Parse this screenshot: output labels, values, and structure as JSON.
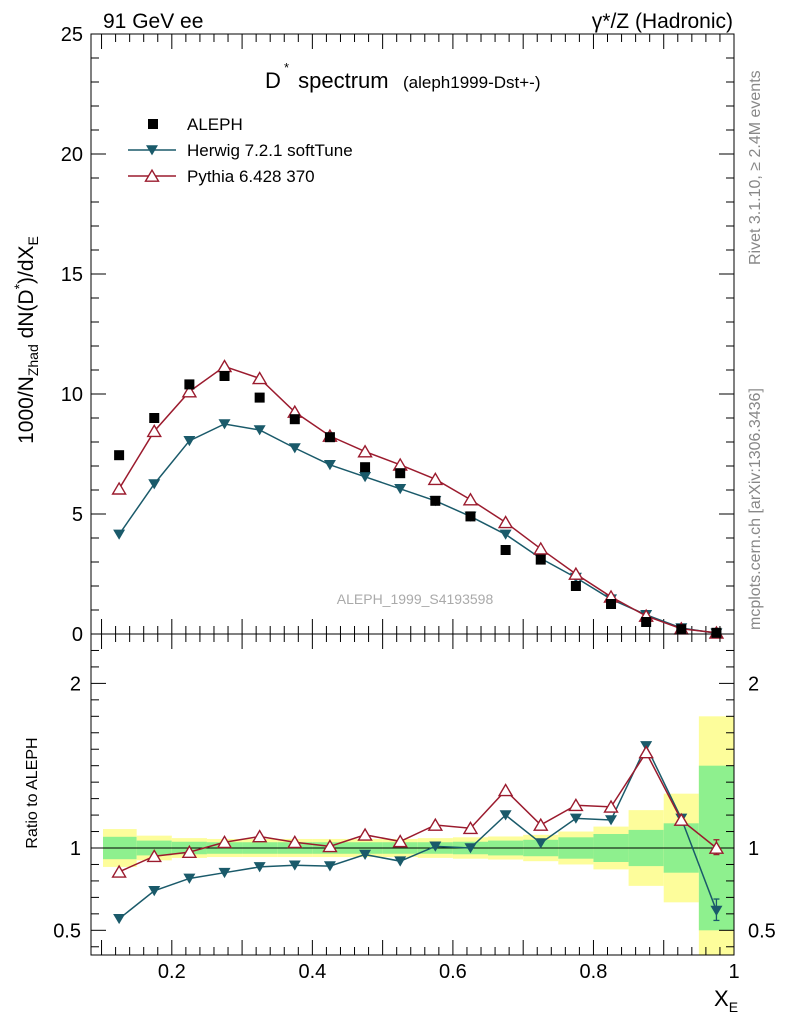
{
  "header": {
    "left": "91 GeV ee",
    "right": "γ*/Z (Hadronic)"
  },
  "side_labels": {
    "rivet": "Rivet 3.1.10, ≥ 2.4M events",
    "mcplots": "mcplots.cern.ch [arXiv:1306.3436]"
  },
  "colors": {
    "aleph": "#000000",
    "herwig": "#1a5a6a",
    "pythia": "#9b1b2e",
    "band_green": "#8ef08e",
    "band_yellow": "#fdfd9b"
  },
  "chart_data": [
    {
      "type": "line",
      "title_main": "D",
      "title_sup": "*",
      "title_rest": " spectrum",
      "title_small": "(aleph1999-Dst+-)",
      "watermark": "ALEPH_1999_S4193598",
      "ylabel": "1000/N_Zhad dN(D*)/dX_E",
      "xlim": [
        0.085,
        1.0
      ],
      "ylim": [
        0,
        25
      ],
      "yticks": [
        0,
        5,
        10,
        15,
        20,
        25
      ],
      "ytick_labels": [
        "0",
        "5",
        "10",
        "15",
        "20",
        "25"
      ],
      "x": [
        0.125,
        0.175,
        0.225,
        0.275,
        0.325,
        0.375,
        0.425,
        0.475,
        0.525,
        0.575,
        0.625,
        0.675,
        0.725,
        0.775,
        0.825,
        0.875,
        0.925,
        0.975
      ],
      "legend": [
        "ALEPH",
        "Herwig 7.2.1 softTune",
        "Pythia 6.428 370"
      ],
      "series": [
        {
          "name": "ALEPH",
          "marker": "square",
          "values": [
            7.45,
            9.0,
            10.4,
            10.75,
            9.85,
            8.95,
            8.2,
            6.95,
            6.7,
            5.55,
            4.9,
            3.5,
            3.1,
            2.0,
            1.25,
            0.5,
            0.2,
            0.05
          ]
        },
        {
          "name": "Herwig 7.2.1 softTune",
          "marker": "triangle-down",
          "values": [
            4.15,
            6.25,
            8.05,
            8.75,
            8.5,
            7.75,
            7.05,
            6.55,
            6.05,
            5.55,
            4.9,
            4.15,
            3.15,
            2.35,
            1.45,
            0.8,
            0.25,
            0.03
          ]
        },
        {
          "name": "Pythia 6.428 370",
          "marker": "triangle-up-open",
          "values": [
            6.05,
            8.45,
            10.1,
            11.15,
            10.65,
            9.25,
            8.25,
            7.6,
            7.05,
            6.45,
            5.6,
            4.65,
            3.55,
            2.5,
            1.55,
            0.75,
            0.22,
            0.05
          ]
        }
      ]
    },
    {
      "type": "line",
      "ylabel": "Ratio to ALEPH",
      "xlabel": "X_E",
      "xlim": [
        0.085,
        1.0
      ],
      "ylim": [
        0.35,
        2.3
      ],
      "xticks": [
        0.2,
        0.4,
        0.6,
        0.8,
        1.0
      ],
      "xtick_labels": [
        "0.2",
        "0.4",
        "0.6",
        "0.8",
        "1"
      ],
      "yticks": [
        0.5,
        1,
        2
      ],
      "ytick_labels": [
        "0.5",
        "1",
        "2"
      ],
      "x": [
        0.125,
        0.175,
        0.225,
        0.275,
        0.325,
        0.375,
        0.425,
        0.475,
        0.525,
        0.575,
        0.625,
        0.675,
        0.725,
        0.775,
        0.825,
        0.875,
        0.925,
        0.975
      ],
      "bin_edges": [
        0.1,
        0.15,
        0.2,
        0.25,
        0.3,
        0.35,
        0.4,
        0.45,
        0.5,
        0.55,
        0.6,
        0.65,
        0.7,
        0.75,
        0.8,
        0.85,
        0.9,
        0.95,
        1.0
      ],
      "band_green": [
        0.068,
        0.045,
        0.038,
        0.035,
        0.035,
        0.035,
        0.035,
        0.035,
        0.035,
        0.035,
        0.038,
        0.045,
        0.05,
        0.065,
        0.085,
        0.11,
        0.15,
        0.5
      ],
      "band_yellow": [
        0.115,
        0.075,
        0.06,
        0.055,
        0.055,
        0.055,
        0.055,
        0.055,
        0.055,
        0.06,
        0.065,
        0.07,
        0.08,
        0.1,
        0.13,
        0.23,
        0.33,
        0.8
      ],
      "series": [
        {
          "name": "Herwig 7.2.1 softTune",
          "marker": "triangle-down",
          "values": [
            0.57,
            0.74,
            0.815,
            0.85,
            0.885,
            0.895,
            0.89,
            0.96,
            0.92,
            1.01,
            1.0,
            1.2,
            1.03,
            1.18,
            1.17,
            1.62,
            1.18,
            0.62
          ]
        },
        {
          "name": "Pythia 6.428 370",
          "marker": "triangle-up-open",
          "values": [
            0.855,
            0.95,
            0.975,
            1.035,
            1.07,
            1.035,
            1.01,
            1.08,
            1.04,
            1.14,
            1.12,
            1.35,
            1.14,
            1.26,
            1.25,
            1.58,
            1.17,
            1.0
          ]
        }
      ],
      "errors_last": {
        "herwig": [
          0.56,
          0.69
        ],
        "pythia": [
          0.96,
          1.05
        ]
      }
    }
  ]
}
